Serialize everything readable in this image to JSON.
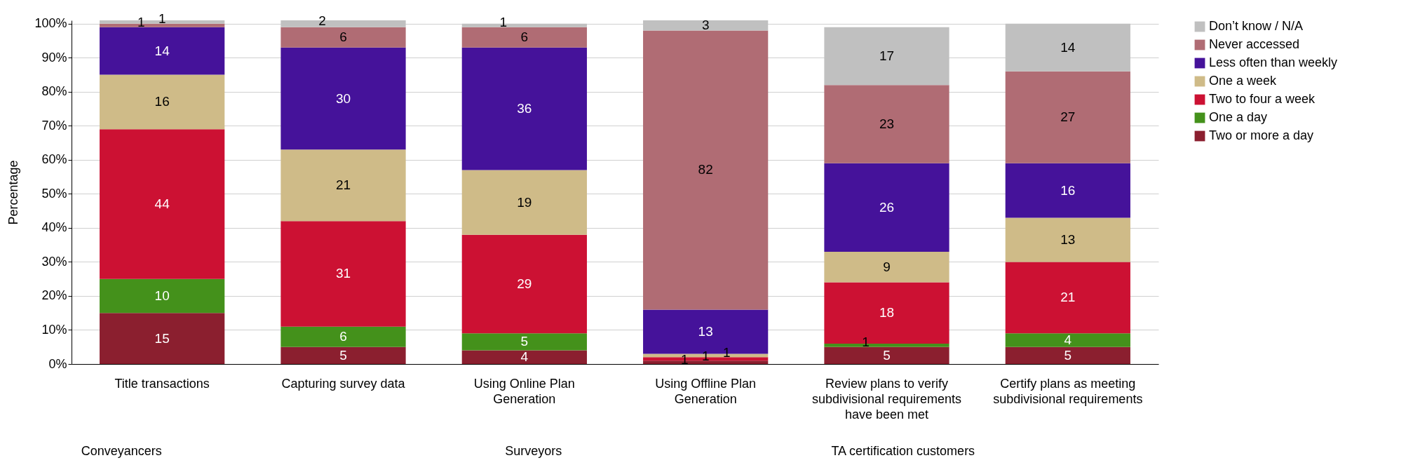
{
  "chart_data": {
    "type": "bar",
    "stacked": true,
    "ylabel": "Percentage",
    "categories": [
      "Title transactions",
      "Capturing survey data",
      "Using Online Plan Generation",
      "Using Offline Plan Generation",
      "Review plans to verify subdivisional requirements have been met",
      "Certify plans as meeting subdivisional requirements"
    ],
    "series": [
      {
        "name": "Two or more a day",
        "color": "#8b1f2f",
        "values": [
          15,
          5,
          4,
          1,
          5,
          5
        ]
      },
      {
        "name": "One  a day",
        "color": "#44911b",
        "values": [
          10,
          6,
          5,
          null,
          1,
          4
        ]
      },
      {
        "name": "Two to four a week",
        "color": "#cc1133",
        "values": [
          44,
          31,
          29,
          1,
          18,
          21
        ]
      },
      {
        "name": "One a week",
        "color": "#cfbb88",
        "values": [
          16,
          21,
          19,
          1,
          9,
          13
        ]
      },
      {
        "name": "Less often than weekly",
        "color": "#45129a",
        "values": [
          14,
          30,
          36,
          13,
          26,
          16
        ]
      },
      {
        "name": "Never accessed",
        "color": "#b06c74",
        "values": [
          1,
          6,
          6,
          82,
          23,
          27
        ]
      },
      {
        "name": "Don’t know / N/A",
        "color": "#c0c0c0",
        "values": [
          1,
          2,
          1,
          3,
          17,
          14
        ]
      }
    ],
    "ylim": [
      0,
      101
    ],
    "yticks": [
      {
        "value": 0,
        "label": "0%"
      },
      {
        "value": 10,
        "label": "10%"
      },
      {
        "value": 20,
        "label": "20%"
      },
      {
        "value": 30,
        "label": "30%"
      },
      {
        "value": 40,
        "label": "40%"
      },
      {
        "value": 50,
        "label": "50%"
      },
      {
        "value": 60,
        "label": "60%"
      },
      {
        "value": 70,
        "label": "70%"
      },
      {
        "value": 80,
        "label": "80%"
      },
      {
        "value": 90,
        "label": "90%"
      },
      {
        "value": 100,
        "label": "100%"
      }
    ],
    "grid": "y",
    "legend": "right",
    "data_labels": true,
    "annotations": [
      "Conveyancers",
      "Surveyors",
      "TA certification customers"
    ]
  }
}
